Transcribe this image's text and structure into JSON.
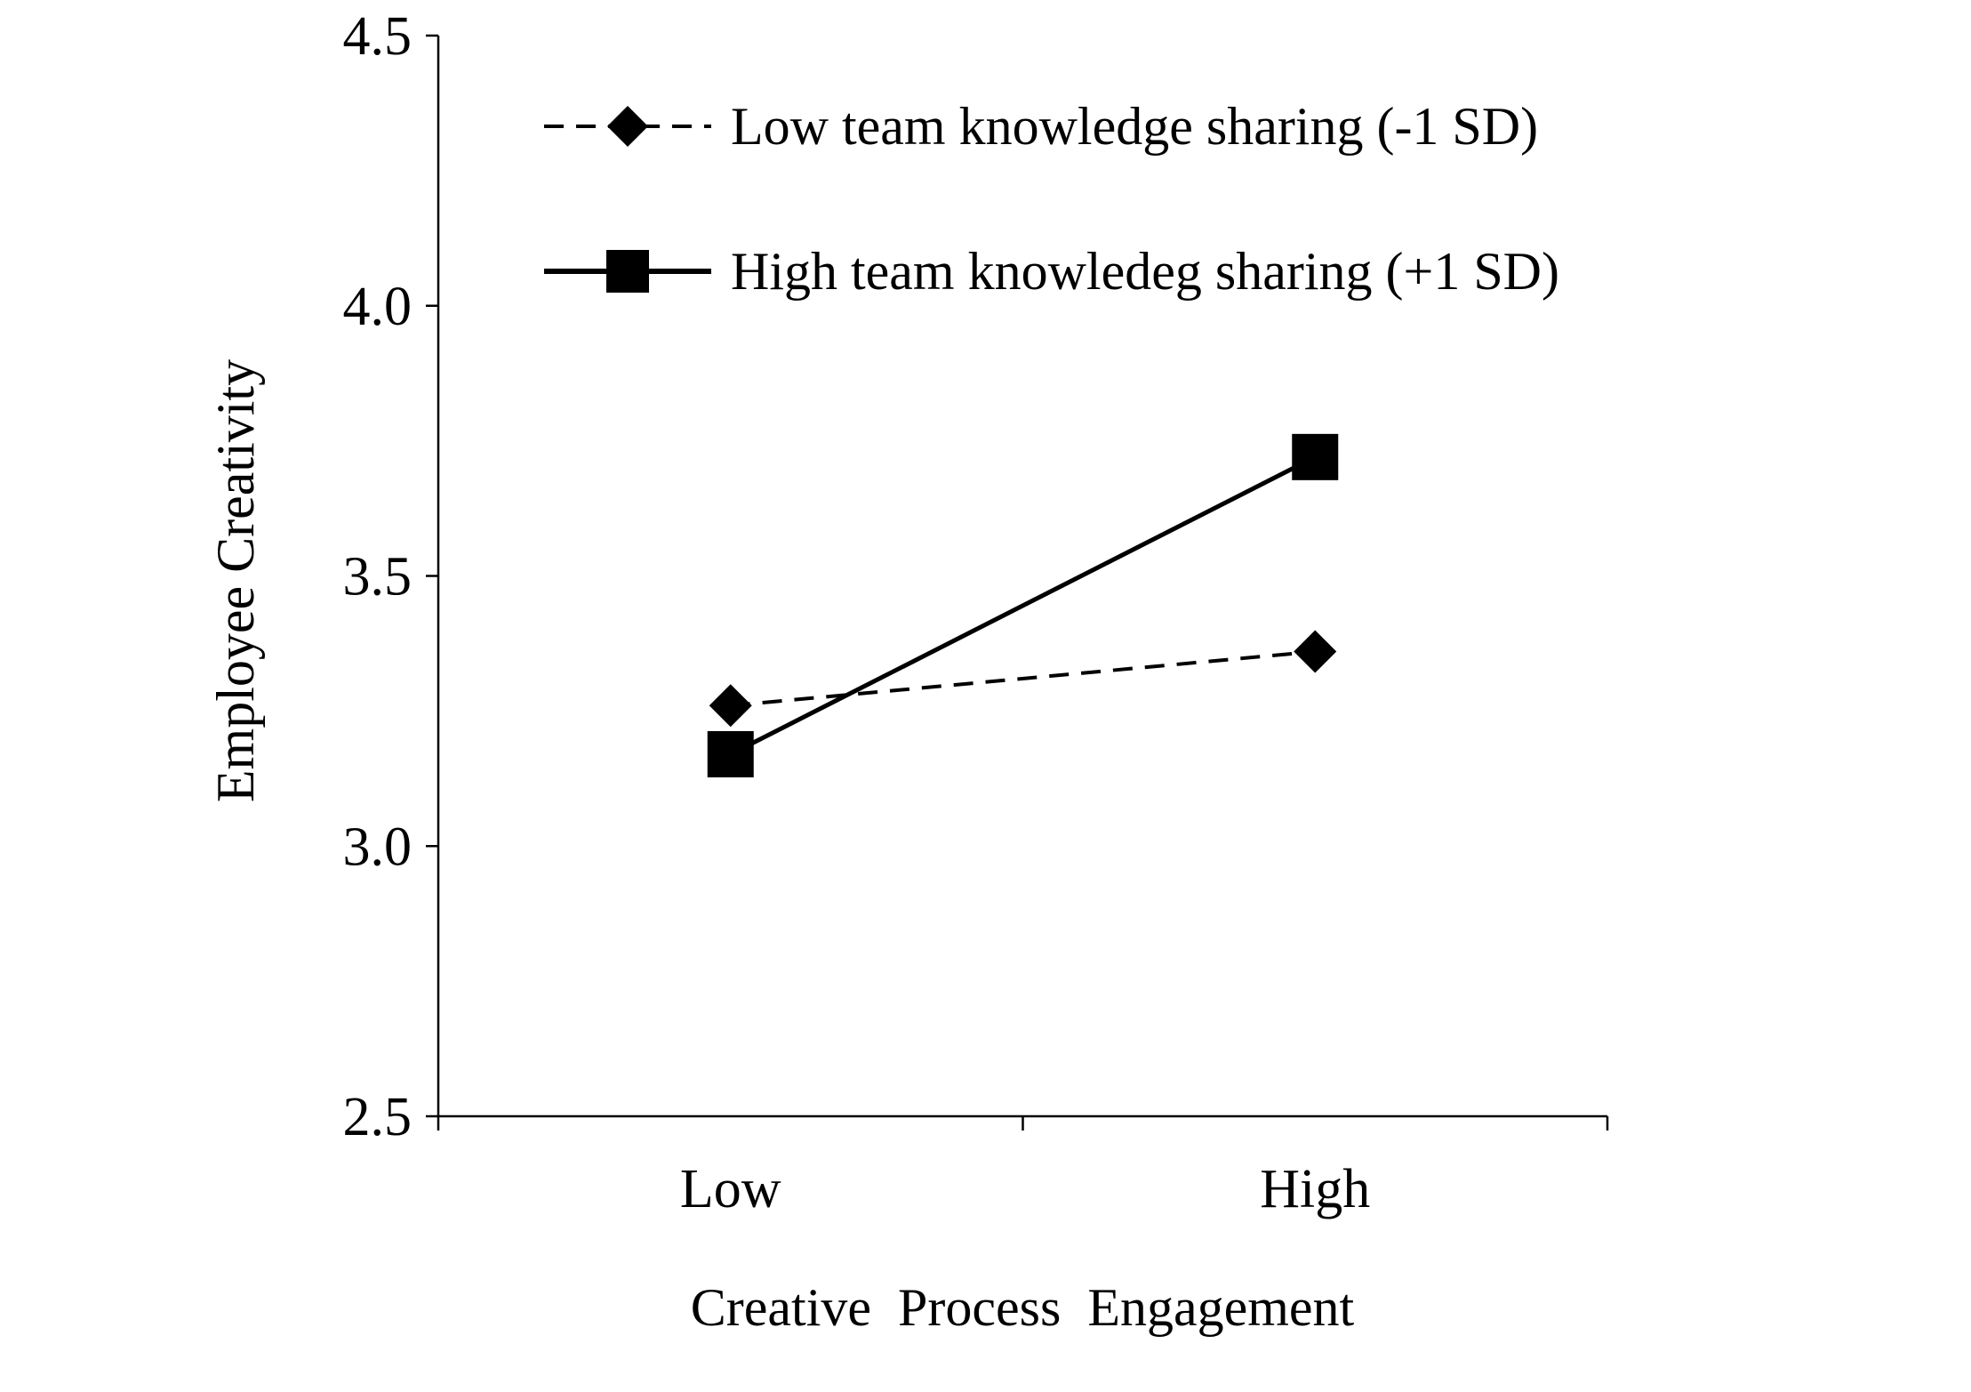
{
  "chart_data": {
    "type": "line",
    "title": "",
    "xlabel": "Creative  Process  Engagement",
    "ylabel": "Employee Creativity",
    "categories": [
      "Low",
      "High"
    ],
    "ylim": [
      2.5,
      4.5
    ],
    "yticks": [
      "2.5",
      "3.0",
      "3.5",
      "4.0",
      "4.5"
    ],
    "grid": false,
    "legend_position": "top-right",
    "series": [
      {
        "name": "Low team knowledge sharing (-1 SD)",
        "values": [
          3.26,
          3.36
        ],
        "line_style": "dashed",
        "marker": "diamond",
        "color": "#000000"
      },
      {
        "name": "High team knowledeg sharing (+1 SD)",
        "values": [
          3.17,
          3.72
        ],
        "line_style": "solid",
        "marker": "square",
        "color": "#000000"
      }
    ]
  }
}
